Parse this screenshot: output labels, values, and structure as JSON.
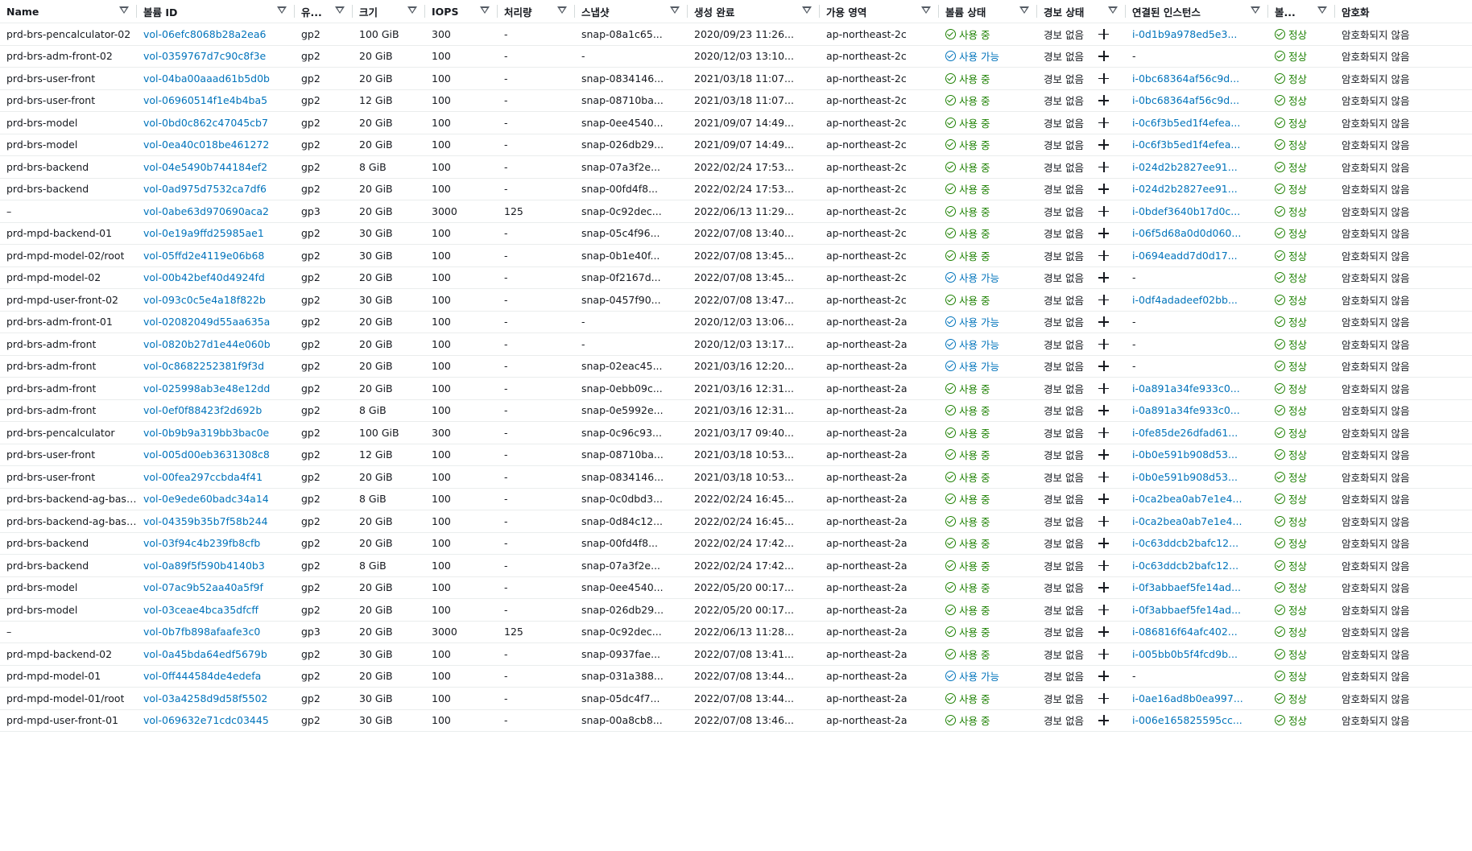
{
  "colors": {
    "link": "#0073bb",
    "ok": "#1d8102",
    "border": "#eaeded"
  },
  "columns": [
    {
      "key": "name",
      "label": "Name"
    },
    {
      "key": "volume_id",
      "label": "볼륨 ID"
    },
    {
      "key": "type",
      "label": "유..."
    },
    {
      "key": "size",
      "label": "크기"
    },
    {
      "key": "iops",
      "label": "IOPS"
    },
    {
      "key": "throughput",
      "label": "처리량"
    },
    {
      "key": "snapshot",
      "label": "스냅샷"
    },
    {
      "key": "created",
      "label": "생성 완료"
    },
    {
      "key": "az",
      "label": "가용 영역"
    },
    {
      "key": "volume_state",
      "label": "볼륨 상태"
    },
    {
      "key": "alarm_status",
      "label": "경보 상태"
    },
    {
      "key": "attached_instance",
      "label": "연결된 인스턴스"
    },
    {
      "key": "volume_status",
      "label": "볼..."
    },
    {
      "key": "encryption",
      "label": "암호화"
    }
  ],
  "rows": [
    {
      "name": "prd-brs-pencalculator-02",
      "volume_id": "vol-06efc8068b28a2ea6",
      "type": "gp2",
      "size": "100 GiB",
      "iops": "300",
      "throughput": "-",
      "snapshot": "snap-08a1c65...",
      "created": "2020/09/23 11:26...",
      "az": "ap-northeast-2c",
      "state": "사용 중",
      "state_kind": "ok",
      "alarm": "경보 없음",
      "instance": "i-0d1b9a978ed5e3...",
      "vstatus": "정상",
      "encryption": "암호화되지 않음"
    },
    {
      "name": "prd-brs-adm-front-02",
      "volume_id": "vol-0359767d7c90c8f3e",
      "type": "gp2",
      "size": "20 GiB",
      "iops": "100",
      "throughput": "-",
      "snapshot": "-",
      "created": "2020/12/03 13:10...",
      "az": "ap-northeast-2c",
      "state": "사용 가능",
      "state_kind": "avail",
      "alarm": "경보 없음",
      "instance": "-",
      "vstatus": "정상",
      "encryption": "암호화되지 않음"
    },
    {
      "name": "prd-brs-user-front",
      "volume_id": "vol-04ba00aaad61b5d0b",
      "type": "gp2",
      "size": "20 GiB",
      "iops": "100",
      "throughput": "-",
      "snapshot": "snap-0834146...",
      "created": "2021/03/18 11:07...",
      "az": "ap-northeast-2c",
      "state": "사용 중",
      "state_kind": "ok",
      "alarm": "경보 없음",
      "instance": "i-0bc68364af56c9d...",
      "vstatus": "정상",
      "encryption": "암호화되지 않음"
    },
    {
      "name": "prd-brs-user-front",
      "volume_id": "vol-06960514f1e4b4ba5",
      "type": "gp2",
      "size": "12 GiB",
      "iops": "100",
      "throughput": "-",
      "snapshot": "snap-08710ba...",
      "created": "2021/03/18 11:07...",
      "az": "ap-northeast-2c",
      "state": "사용 중",
      "state_kind": "ok",
      "alarm": "경보 없음",
      "instance": "i-0bc68364af56c9d...",
      "vstatus": "정상",
      "encryption": "암호화되지 않음"
    },
    {
      "name": "prd-brs-model",
      "volume_id": "vol-0bd0c862c47045cb7",
      "type": "gp2",
      "size": "20 GiB",
      "iops": "100",
      "throughput": "-",
      "snapshot": "snap-0ee4540...",
      "created": "2021/09/07 14:49...",
      "az": "ap-northeast-2c",
      "state": "사용 중",
      "state_kind": "ok",
      "alarm": "경보 없음",
      "instance": "i-0c6f3b5ed1f4efea...",
      "vstatus": "정상",
      "encryption": "암호화되지 않음"
    },
    {
      "name": "prd-brs-model",
      "volume_id": "vol-0ea40c018be461272",
      "type": "gp2",
      "size": "20 GiB",
      "iops": "100",
      "throughput": "-",
      "snapshot": "snap-026db29...",
      "created": "2021/09/07 14:49...",
      "az": "ap-northeast-2c",
      "state": "사용 중",
      "state_kind": "ok",
      "alarm": "경보 없음",
      "instance": "i-0c6f3b5ed1f4efea...",
      "vstatus": "정상",
      "encryption": "암호화되지 않음"
    },
    {
      "name": "prd-brs-backend",
      "volume_id": "vol-04e5490b744184ef2",
      "type": "gp2",
      "size": "8 GiB",
      "iops": "100",
      "throughput": "-",
      "snapshot": "snap-07a3f2e...",
      "created": "2022/02/24 17:53...",
      "az": "ap-northeast-2c",
      "state": "사용 중",
      "state_kind": "ok",
      "alarm": "경보 없음",
      "instance": "i-024d2b2827ee91...",
      "vstatus": "정상",
      "encryption": "암호화되지 않음"
    },
    {
      "name": "prd-brs-backend",
      "volume_id": "vol-0ad975d7532ca7df6",
      "type": "gp2",
      "size": "20 GiB",
      "iops": "100",
      "throughput": "-",
      "snapshot": "snap-00fd4f8...",
      "created": "2022/02/24 17:53...",
      "az": "ap-northeast-2c",
      "state": "사용 중",
      "state_kind": "ok",
      "alarm": "경보 없음",
      "instance": "i-024d2b2827ee91...",
      "vstatus": "정상",
      "encryption": "암호화되지 않음"
    },
    {
      "name": "–",
      "volume_id": "vol-0abe63d970690aca2",
      "type": "gp3",
      "size": "20 GiB",
      "iops": "3000",
      "throughput": "125",
      "snapshot": "snap-0c92dec...",
      "created": "2022/06/13 11:29...",
      "az": "ap-northeast-2c",
      "state": "사용 중",
      "state_kind": "ok",
      "alarm": "경보 없음",
      "instance": "i-0bdef3640b17d0c...",
      "vstatus": "정상",
      "encryption": "암호화되지 않음"
    },
    {
      "name": "prd-mpd-backend-01",
      "volume_id": "vol-0e19a9ffd25985ae1",
      "type": "gp2",
      "size": "30 GiB",
      "iops": "100",
      "throughput": "-",
      "snapshot": "snap-05c4f96...",
      "created": "2022/07/08 13:40...",
      "az": "ap-northeast-2c",
      "state": "사용 중",
      "state_kind": "ok",
      "alarm": "경보 없음",
      "instance": "i-06f5d68a0d0d060...",
      "vstatus": "정상",
      "encryption": "암호화되지 않음"
    },
    {
      "name": "prd-mpd-model-02/root",
      "volume_id": "vol-05ffd2e4119e06b68",
      "type": "gp2",
      "size": "30 GiB",
      "iops": "100",
      "throughput": "-",
      "snapshot": "snap-0b1e40f...",
      "created": "2022/07/08 13:45...",
      "az": "ap-northeast-2c",
      "state": "사용 중",
      "state_kind": "ok",
      "alarm": "경보 없음",
      "instance": "i-0694eadd7d0d17...",
      "vstatus": "정상",
      "encryption": "암호화되지 않음"
    },
    {
      "name": "prd-mpd-model-02",
      "volume_id": "vol-00b42bef40d4924fd",
      "type": "gp2",
      "size": "20 GiB",
      "iops": "100",
      "throughput": "-",
      "snapshot": "snap-0f2167d...",
      "created": "2022/07/08 13:45...",
      "az": "ap-northeast-2c",
      "state": "사용 가능",
      "state_kind": "avail",
      "alarm": "경보 없음",
      "instance": "-",
      "vstatus": "정상",
      "encryption": "암호화되지 않음"
    },
    {
      "name": "prd-mpd-user-front-02",
      "volume_id": "vol-093c0c5e4a18f822b",
      "type": "gp2",
      "size": "30 GiB",
      "iops": "100",
      "throughput": "-",
      "snapshot": "snap-0457f90...",
      "created": "2022/07/08 13:47...",
      "az": "ap-northeast-2c",
      "state": "사용 중",
      "state_kind": "ok",
      "alarm": "경보 없음",
      "instance": "i-0df4adadeef02bb...",
      "vstatus": "정상",
      "encryption": "암호화되지 않음"
    },
    {
      "name": "prd-brs-adm-front-01",
      "volume_id": "vol-02082049d55aa635a",
      "type": "gp2",
      "size": "20 GiB",
      "iops": "100",
      "throughput": "-",
      "snapshot": "-",
      "created": "2020/12/03 13:06...",
      "az": "ap-northeast-2a",
      "state": "사용 가능",
      "state_kind": "avail",
      "alarm": "경보 없음",
      "instance": "-",
      "vstatus": "정상",
      "encryption": "암호화되지 않음"
    },
    {
      "name": "prd-brs-adm-front",
      "volume_id": "vol-0820b27d1e44e060b",
      "type": "gp2",
      "size": "20 GiB",
      "iops": "100",
      "throughput": "-",
      "snapshot": "-",
      "created": "2020/12/03 13:17...",
      "az": "ap-northeast-2a",
      "state": "사용 가능",
      "state_kind": "avail",
      "alarm": "경보 없음",
      "instance": "-",
      "vstatus": "정상",
      "encryption": "암호화되지 않음"
    },
    {
      "name": "prd-brs-adm-front",
      "volume_id": "vol-0c8682252381f9f3d",
      "type": "gp2",
      "size": "20 GiB",
      "iops": "100",
      "throughput": "-",
      "snapshot": "snap-02eac45...",
      "created": "2021/03/16 12:20...",
      "az": "ap-northeast-2a",
      "state": "사용 가능",
      "state_kind": "avail",
      "alarm": "경보 없음",
      "instance": "-",
      "vstatus": "정상",
      "encryption": "암호화되지 않음"
    },
    {
      "name": "prd-brs-adm-front",
      "volume_id": "vol-025998ab3e48e12dd",
      "type": "gp2",
      "size": "20 GiB",
      "iops": "100",
      "throughput": "-",
      "snapshot": "snap-0ebb09c...",
      "created": "2021/03/16 12:31...",
      "az": "ap-northeast-2a",
      "state": "사용 중",
      "state_kind": "ok",
      "alarm": "경보 없음",
      "instance": "i-0a891a34fe933c0...",
      "vstatus": "정상",
      "encryption": "암호화되지 않음"
    },
    {
      "name": "prd-brs-adm-front",
      "volume_id": "vol-0ef0f88423f2d692b",
      "type": "gp2",
      "size": "8 GiB",
      "iops": "100",
      "throughput": "-",
      "snapshot": "snap-0e5992e...",
      "created": "2021/03/16 12:31...",
      "az": "ap-northeast-2a",
      "state": "사용 중",
      "state_kind": "ok",
      "alarm": "경보 없음",
      "instance": "i-0a891a34fe933c0...",
      "vstatus": "정상",
      "encryption": "암호화되지 않음"
    },
    {
      "name": "prd-brs-pencalculator",
      "volume_id": "vol-0b9b9a319bb3bac0e",
      "type": "gp2",
      "size": "100 GiB",
      "iops": "300",
      "throughput": "-",
      "snapshot": "snap-0c96c93...",
      "created": "2021/03/17 09:40...",
      "az": "ap-northeast-2a",
      "state": "사용 중",
      "state_kind": "ok",
      "alarm": "경보 없음",
      "instance": "i-0fe85de26dfad61...",
      "vstatus": "정상",
      "encryption": "암호화되지 않음"
    },
    {
      "name": "prd-brs-user-front",
      "volume_id": "vol-005d00eb3631308c8",
      "type": "gp2",
      "size": "12 GiB",
      "iops": "100",
      "throughput": "-",
      "snapshot": "snap-08710ba...",
      "created": "2021/03/18 10:53...",
      "az": "ap-northeast-2a",
      "state": "사용 중",
      "state_kind": "ok",
      "alarm": "경보 없음",
      "instance": "i-0b0e591b908d53...",
      "vstatus": "정상",
      "encryption": "암호화되지 않음"
    },
    {
      "name": "prd-brs-user-front",
      "volume_id": "vol-00fea297ccbda4f41",
      "type": "gp2",
      "size": "20 GiB",
      "iops": "100",
      "throughput": "-",
      "snapshot": "snap-0834146...",
      "created": "2021/03/18 10:53...",
      "az": "ap-northeast-2a",
      "state": "사용 중",
      "state_kind": "ok",
      "alarm": "경보 없음",
      "instance": "i-0b0e591b908d53...",
      "vstatus": "정상",
      "encryption": "암호화되지 않음"
    },
    {
      "name": "prd-brs-backend-ag-base...",
      "volume_id": "vol-0e9ede60badc34a14",
      "type": "gp2",
      "size": "8 GiB",
      "iops": "100",
      "throughput": "-",
      "snapshot": "snap-0c0dbd3...",
      "created": "2022/02/24 16:45...",
      "az": "ap-northeast-2a",
      "state": "사용 중",
      "state_kind": "ok",
      "alarm": "경보 없음",
      "instance": "i-0ca2bea0ab7e1e4...",
      "vstatus": "정상",
      "encryption": "암호화되지 않음"
    },
    {
      "name": "prd-brs-backend-ag-base...",
      "volume_id": "vol-04359b35b7f58b244",
      "type": "gp2",
      "size": "20 GiB",
      "iops": "100",
      "throughput": "-",
      "snapshot": "snap-0d84c12...",
      "created": "2022/02/24 16:45...",
      "az": "ap-northeast-2a",
      "state": "사용 중",
      "state_kind": "ok",
      "alarm": "경보 없음",
      "instance": "i-0ca2bea0ab7e1e4...",
      "vstatus": "정상",
      "encryption": "암호화되지 않음"
    },
    {
      "name": "prd-brs-backend",
      "volume_id": "vol-03f94c4b239fb8cfb",
      "type": "gp2",
      "size": "20 GiB",
      "iops": "100",
      "throughput": "-",
      "snapshot": "snap-00fd4f8...",
      "created": "2022/02/24 17:42...",
      "az": "ap-northeast-2a",
      "state": "사용 중",
      "state_kind": "ok",
      "alarm": "경보 없음",
      "instance": "i-0c63ddcb2bafc12...",
      "vstatus": "정상",
      "encryption": "암호화되지 않음"
    },
    {
      "name": "prd-brs-backend",
      "volume_id": "vol-0a89f5f590b4140b3",
      "type": "gp2",
      "size": "8 GiB",
      "iops": "100",
      "throughput": "-",
      "snapshot": "snap-07a3f2e...",
      "created": "2022/02/24 17:42...",
      "az": "ap-northeast-2a",
      "state": "사용 중",
      "state_kind": "ok",
      "alarm": "경보 없음",
      "instance": "i-0c63ddcb2bafc12...",
      "vstatus": "정상",
      "encryption": "암호화되지 않음"
    },
    {
      "name": "prd-brs-model",
      "volume_id": "vol-07ac9b52aa40a5f9f",
      "type": "gp2",
      "size": "20 GiB",
      "iops": "100",
      "throughput": "-",
      "snapshot": "snap-0ee4540...",
      "created": "2022/05/20 00:17...",
      "az": "ap-northeast-2a",
      "state": "사용 중",
      "state_kind": "ok",
      "alarm": "경보 없음",
      "instance": "i-0f3abbaef5fe14ad...",
      "vstatus": "정상",
      "encryption": "암호화되지 않음"
    },
    {
      "name": "prd-brs-model",
      "volume_id": "vol-03ceae4bca35dfcff",
      "type": "gp2",
      "size": "20 GiB",
      "iops": "100",
      "throughput": "-",
      "snapshot": "snap-026db29...",
      "created": "2022/05/20 00:17...",
      "az": "ap-northeast-2a",
      "state": "사용 중",
      "state_kind": "ok",
      "alarm": "경보 없음",
      "instance": "i-0f3abbaef5fe14ad...",
      "vstatus": "정상",
      "encryption": "암호화되지 않음"
    },
    {
      "name": "–",
      "volume_id": "vol-0b7fb898afaafe3c0",
      "type": "gp3",
      "size": "20 GiB",
      "iops": "3000",
      "throughput": "125",
      "snapshot": "snap-0c92dec...",
      "created": "2022/06/13 11:28...",
      "az": "ap-northeast-2a",
      "state": "사용 중",
      "state_kind": "ok",
      "alarm": "경보 없음",
      "instance": "i-086816f64afc402...",
      "vstatus": "정상",
      "encryption": "암호화되지 않음"
    },
    {
      "name": "prd-mpd-backend-02",
      "volume_id": "vol-0a45bda64edf5679b",
      "type": "gp2",
      "size": "30 GiB",
      "iops": "100",
      "throughput": "-",
      "snapshot": "snap-0937fae...",
      "created": "2022/07/08 13:41...",
      "az": "ap-northeast-2a",
      "state": "사용 중",
      "state_kind": "ok",
      "alarm": "경보 없음",
      "instance": "i-005bb0b5f4fcd9b...",
      "vstatus": "정상",
      "encryption": "암호화되지 않음"
    },
    {
      "name": "prd-mpd-model-01",
      "volume_id": "vol-0ff444584de4edefa",
      "type": "gp2",
      "size": "20 GiB",
      "iops": "100",
      "throughput": "-",
      "snapshot": "snap-031a388...",
      "created": "2022/07/08 13:44...",
      "az": "ap-northeast-2a",
      "state": "사용 가능",
      "state_kind": "avail",
      "alarm": "경보 없음",
      "instance": "-",
      "vstatus": "정상",
      "encryption": "암호화되지 않음"
    },
    {
      "name": "prd-mpd-model-01/root",
      "volume_id": "vol-03a4258d9d58f5502",
      "type": "gp2",
      "size": "30 GiB",
      "iops": "100",
      "throughput": "-",
      "snapshot": "snap-05dc4f7...",
      "created": "2022/07/08 13:44...",
      "az": "ap-northeast-2a",
      "state": "사용 중",
      "state_kind": "ok",
      "alarm": "경보 없음",
      "instance": "i-0ae16ad8b0ea997...",
      "vstatus": "정상",
      "encryption": "암호화되지 않음"
    },
    {
      "name": "prd-mpd-user-front-01",
      "volume_id": "vol-069632e71cdc03445",
      "type": "gp2",
      "size": "30 GiB",
      "iops": "100",
      "throughput": "-",
      "snapshot": "snap-00a8cb8...",
      "created": "2022/07/08 13:46...",
      "az": "ap-northeast-2a",
      "state": "사용 중",
      "state_kind": "ok",
      "alarm": "경보 없음",
      "instance": "i-006e165825595cc...",
      "vstatus": "정상",
      "encryption": "암호화되지 않음"
    }
  ]
}
